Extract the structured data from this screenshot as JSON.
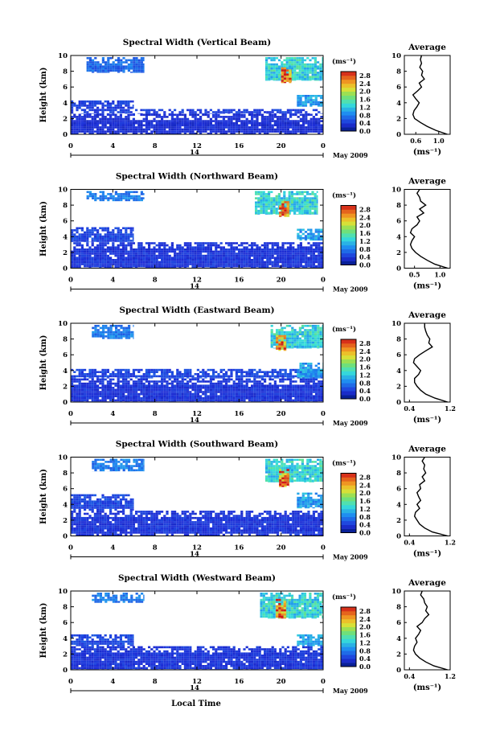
{
  "figure": {
    "xlabel": "Local Time",
    "date_label": "May 2009",
    "date_day": "14",
    "ylabel": "Height (km)",
    "unit_label": "(ms⁻¹)",
    "avg_title": "Average",
    "avg_unit": "(ms⁻¹)"
  },
  "chart_data": [
    {
      "type": "heatmap",
      "title": "Spectral Width (Vertical Beam)",
      "xlabel": "",
      "ylabel": "Height (km)",
      "x_ticks": [
        "0",
        "4",
        "8",
        "12",
        "16",
        "20",
        "0"
      ],
      "y_ticks": [
        "0",
        "2",
        "4",
        "6",
        "8",
        "10"
      ],
      "xlim": [
        0,
        24
      ],
      "ylim": [
        0,
        10
      ],
      "colorbar": {
        "ticks": [
          "0.0",
          "0.4",
          "0.8",
          "1.2",
          "1.6",
          "2.0",
          "2.4",
          "2.8"
        ],
        "range": [
          0,
          3.0
        ]
      },
      "regions": [
        {
          "t0": 0,
          "t1": 24,
          "h0": 0,
          "h1": 2.6,
          "value": 0.35
        },
        {
          "t0": 0,
          "t1": 24,
          "h0": 2.6,
          "h1": 3.2,
          "value": 0.45
        },
        {
          "t0": 0,
          "t1": 6,
          "h0": 3.2,
          "h1": 4.3,
          "value": 0.45
        },
        {
          "t0": 1.5,
          "t1": 7,
          "h0": 7.8,
          "h1": 9.8,
          "value": 0.7
        },
        {
          "t0": 18.5,
          "t1": 24,
          "h0": 6.8,
          "h1": 9.8,
          "value": 1.3
        },
        {
          "t0": 20,
          "t1": 21,
          "h0": 6.5,
          "h1": 8.5,
          "value": 2.6
        },
        {
          "t0": 21.5,
          "t1": 24,
          "h0": 3.5,
          "h1": 5.0,
          "value": 1.0
        }
      ],
      "average": {
        "xlim": [
          0.4,
          1.2
        ],
        "x_ticks": [
          "0.6",
          "1.0"
        ],
        "x_tick_values": [
          0.6,
          1.0
        ],
        "profile_h": [
          0,
          0.5,
          1,
          1.5,
          2,
          2.5,
          3,
          3.5,
          4,
          4.5,
          5,
          5.5,
          6,
          6.5,
          7,
          7.5,
          8,
          8.5,
          9,
          9.5,
          10
        ],
        "profile_v": [
          1.15,
          0.95,
          0.8,
          0.68,
          0.58,
          0.55,
          0.57,
          0.62,
          0.66,
          0.6,
          0.55,
          0.63,
          0.7,
          0.66,
          0.75,
          0.7,
          0.72,
          0.67,
          0.7,
          0.68,
          0.7
        ]
      }
    },
    {
      "type": "heatmap",
      "title": "Spectral Width (Northward Beam)",
      "x_ticks": [
        "0",
        "4",
        "8",
        "12",
        "16",
        "20",
        "0"
      ],
      "y_ticks": [
        "0",
        "2",
        "4",
        "6",
        "8",
        "10"
      ],
      "xlim": [
        0,
        24
      ],
      "ylim": [
        0,
        10
      ],
      "colorbar": {
        "ticks": [
          "0.0",
          "0.4",
          "0.8",
          "1.2",
          "1.6",
          "2.0",
          "2.4",
          "2.8"
        ],
        "range": [
          0,
          3.0
        ]
      },
      "regions": [
        {
          "t0": 0,
          "t1": 24,
          "h0": 0,
          "h1": 3.3,
          "value": 0.4
        },
        {
          "t0": 0,
          "t1": 6,
          "h0": 3.3,
          "h1": 5.2,
          "value": 0.5
        },
        {
          "t0": 1.5,
          "t1": 7,
          "h0": 8.5,
          "h1": 9.8,
          "value": 0.8
        },
        {
          "t0": 17.5,
          "t1": 23.5,
          "h0": 6.8,
          "h1": 9.8,
          "value": 1.3
        },
        {
          "t0": 19.8,
          "t1": 20.8,
          "h0": 6.5,
          "h1": 8.5,
          "value": 2.6
        },
        {
          "t0": 21.5,
          "t1": 24,
          "h0": 3.5,
          "h1": 5.0,
          "value": 1.0
        }
      ],
      "average": {
        "xlim": [
          0.3,
          1.2
        ],
        "x_ticks": [
          "0.5",
          "1.0"
        ],
        "x_tick_values": [
          0.5,
          1.0
        ],
        "profile_h": [
          0,
          0.5,
          1,
          1.5,
          2,
          2.5,
          3,
          3.5,
          4,
          4.5,
          5,
          5.5,
          6,
          6.5,
          7,
          7.5,
          8,
          8.5,
          9,
          9.5,
          10
        ],
        "profile_v": [
          1.15,
          0.9,
          0.75,
          0.62,
          0.52,
          0.45,
          0.42,
          0.45,
          0.5,
          0.42,
          0.45,
          0.55,
          0.6,
          0.55,
          0.68,
          0.6,
          0.72,
          0.62,
          0.6,
          0.55,
          0.6
        ]
      }
    },
    {
      "type": "heatmap",
      "title": "Spectral Width (Eastward Beam)",
      "x_ticks": [
        "0",
        "4",
        "8",
        "12",
        "16",
        "20",
        "0"
      ],
      "y_ticks": [
        "0",
        "2",
        "4",
        "6",
        "8",
        "10"
      ],
      "xlim": [
        0,
        24
      ],
      "ylim": [
        0,
        10
      ],
      "colorbar": {
        "ticks": [
          "0.0",
          "0.4",
          "0.8",
          "1.2",
          "1.6",
          "2.0",
          "2.4",
          "2.8"
        ],
        "range": [
          0,
          3.0
        ]
      },
      "regions": [
        {
          "t0": 0,
          "t1": 24,
          "h0": 0,
          "h1": 3.0,
          "value": 0.4
        },
        {
          "t0": 0,
          "t1": 24,
          "h0": 3.0,
          "h1": 4.2,
          "value": 0.5
        },
        {
          "t0": 2,
          "t1": 6,
          "h0": 8.0,
          "h1": 9.8,
          "value": 0.8
        },
        {
          "t0": 19,
          "t1": 24,
          "h0": 6.8,
          "h1": 9.8,
          "value": 1.3
        },
        {
          "t0": 19.5,
          "t1": 20.5,
          "h0": 6.5,
          "h1": 8.5,
          "value": 2.6
        },
        {
          "t0": 21.5,
          "t1": 24,
          "h0": 3.0,
          "h1": 5.0,
          "value": 1.0
        }
      ],
      "average": {
        "xlim": [
          0.3,
          1.2
        ],
        "x_ticks": [
          "0.4",
          "1.2"
        ],
        "x_tick_values": [
          0.4,
          1.2
        ],
        "profile_h": [
          0,
          0.5,
          1,
          1.5,
          2,
          2.5,
          3,
          3.5,
          4,
          4.5,
          5,
          5.5,
          6,
          6.5,
          7,
          7.5,
          8,
          8.5,
          9,
          9.5,
          10
        ],
        "profile_v": [
          1.15,
          0.9,
          0.72,
          0.62,
          0.55,
          0.5,
          0.5,
          0.58,
          0.62,
          0.55,
          0.48,
          0.5,
          0.6,
          0.72,
          0.85,
          0.78,
          0.8,
          0.75,
          0.72,
          0.7,
          0.7
        ]
      }
    },
    {
      "type": "heatmap",
      "title": "Spectral Width (Southward Beam)",
      "x_ticks": [
        "0",
        "4",
        "8",
        "12",
        "16",
        "20",
        "0"
      ],
      "y_ticks": [
        "0",
        "2",
        "4",
        "6",
        "8",
        "10"
      ],
      "xlim": [
        0,
        24
      ],
      "ylim": [
        0,
        10
      ],
      "colorbar": {
        "ticks": [
          "0.0",
          "0.4",
          "0.8",
          "1.2",
          "1.6",
          "2.0",
          "2.4",
          "2.8"
        ],
        "range": [
          0,
          3.0
        ]
      },
      "regions": [
        {
          "t0": 0,
          "t1": 24,
          "h0": 0,
          "h1": 3.2,
          "value": 0.4
        },
        {
          "t0": 0,
          "t1": 6,
          "h0": 3.2,
          "h1": 5.3,
          "value": 0.5
        },
        {
          "t0": 2,
          "t1": 7,
          "h0": 8.2,
          "h1": 9.8,
          "value": 0.8
        },
        {
          "t0": 18.5,
          "t1": 24,
          "h0": 6.8,
          "h1": 9.8,
          "value": 1.3
        },
        {
          "t0": 19.8,
          "t1": 20.8,
          "h0": 6.2,
          "h1": 8.5,
          "value": 2.6
        },
        {
          "t0": 21.5,
          "t1": 24,
          "h0": 3.5,
          "h1": 5.5,
          "value": 1.0
        }
      ],
      "average": {
        "xlim": [
          0.3,
          1.2
        ],
        "x_ticks": [
          "0.4",
          "1.2"
        ],
        "x_tick_values": [
          0.4,
          1.2
        ],
        "profile_h": [
          0,
          0.5,
          1,
          1.5,
          2,
          2.5,
          3,
          3.5,
          4,
          4.5,
          5,
          5.5,
          6,
          6.5,
          7,
          7.5,
          8,
          8.5,
          9,
          9.5,
          10
        ],
        "profile_v": [
          1.15,
          0.85,
          0.7,
          0.6,
          0.55,
          0.5,
          0.52,
          0.6,
          0.55,
          0.62,
          0.58,
          0.55,
          0.62,
          0.6,
          0.7,
          0.65,
          0.72,
          0.68,
          0.7,
          0.65,
          0.7
        ]
      }
    },
    {
      "type": "heatmap",
      "title": "Spectral Width (Westward Beam)",
      "xlabel": "Local Time",
      "x_ticks": [
        "0",
        "4",
        "8",
        "12",
        "16",
        "20",
        "0"
      ],
      "y_ticks": [
        "0",
        "2",
        "4",
        "6",
        "8",
        "10"
      ],
      "xlim": [
        0,
        24
      ],
      "ylim": [
        0,
        10
      ],
      "colorbar": {
        "ticks": [
          "0.0",
          "0.4",
          "0.8",
          "1.2",
          "1.6",
          "2.0",
          "2.4",
          "2.8"
        ],
        "range": [
          0,
          3.0
        ]
      },
      "regions": [
        {
          "t0": 0,
          "t1": 24,
          "h0": 0,
          "h1": 3.0,
          "value": 0.4
        },
        {
          "t0": 0,
          "t1": 6,
          "h0": 3.0,
          "h1": 4.5,
          "value": 0.5
        },
        {
          "t0": 2,
          "t1": 7,
          "h0": 8.5,
          "h1": 9.8,
          "value": 0.8
        },
        {
          "t0": 18,
          "t1": 24,
          "h0": 6.5,
          "h1": 9.8,
          "value": 1.3
        },
        {
          "t0": 19.5,
          "t1": 20.5,
          "h0": 6.5,
          "h1": 9.0,
          "value": 2.6
        },
        {
          "t0": 21.5,
          "t1": 24,
          "h0": 3.0,
          "h1": 4.5,
          "value": 1.0
        }
      ],
      "average": {
        "xlim": [
          0.3,
          1.2
        ],
        "x_ticks": [
          "0.4",
          "1.2"
        ],
        "x_tick_values": [
          0.4,
          1.2
        ],
        "profile_h": [
          0,
          0.5,
          1,
          1.5,
          2,
          2.5,
          3,
          3.5,
          4,
          4.5,
          5,
          5.5,
          6,
          6.5,
          7,
          7.5,
          8,
          8.5,
          9,
          9.5,
          10
        ],
        "profile_v": [
          1.15,
          0.88,
          0.72,
          0.6,
          0.52,
          0.48,
          0.5,
          0.55,
          0.52,
          0.58,
          0.62,
          0.55,
          0.65,
          0.7,
          0.78,
          0.72,
          0.75,
          0.7,
          0.68,
          0.62,
          0.65
        ]
      }
    }
  ]
}
